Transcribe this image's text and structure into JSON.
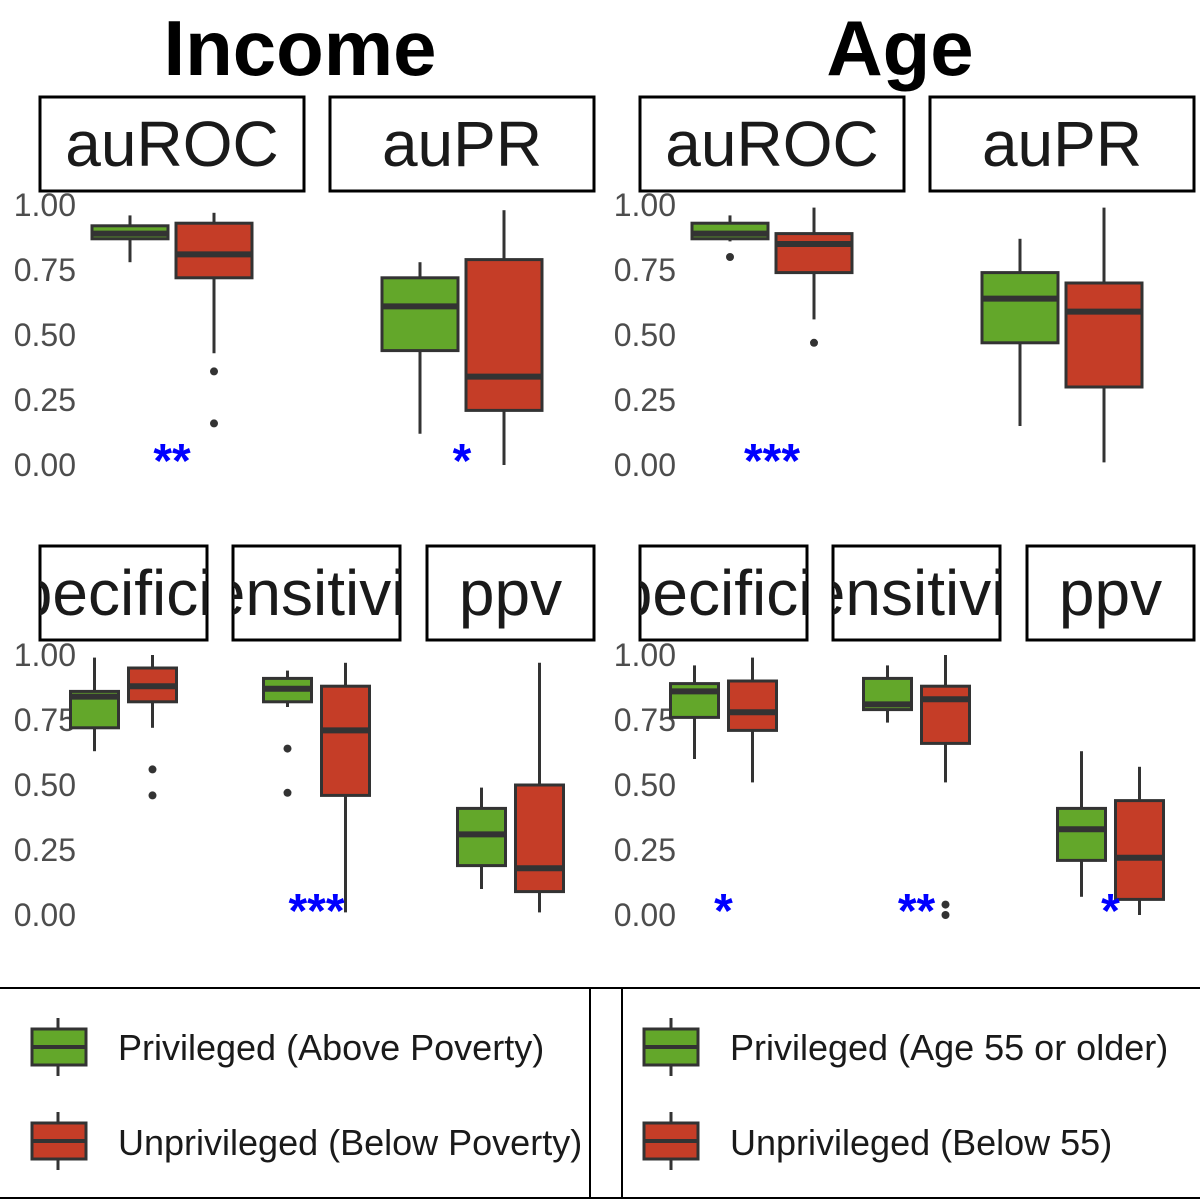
{
  "groups": [
    {
      "title": "Income"
    },
    {
      "title": "Age"
    }
  ],
  "legend": {
    "income": [
      {
        "label": "Privileged (Above Poverty)",
        "color": "#63a72a"
      },
      {
        "label": "Unprivileged (Below Poverty)",
        "color": "#c53d27"
      }
    ],
    "age": [
      {
        "label": "Privileged (Age 55 or older)",
        "color": "#63a72a"
      },
      {
        "label": "Unprivileged (Below 55)",
        "color": "#c53d27"
      }
    ]
  },
  "chart_data": [
    {
      "type": "boxplot",
      "group": "Income",
      "panels": [
        {
          "metric": "auROC",
          "ylim": [
            0,
            1
          ],
          "y_ticks": [
            "0.00",
            "0.25",
            "0.50",
            "0.75",
            "1.00"
          ],
          "significance": "**",
          "boxes": [
            {
              "series": "Privileged (Above Poverty)",
              "min": 0.78,
              "q1": 0.87,
              "median": 0.89,
              "q3": 0.92,
              "max": 0.96,
              "outliers": []
            },
            {
              "series": "Unprivileged (Below Poverty)",
              "min": 0.43,
              "q1": 0.72,
              "median": 0.81,
              "q3": 0.93,
              "max": 0.97,
              "outliers": [
                0.36,
                0.16
              ]
            }
          ]
        },
        {
          "metric": "auPR",
          "ylim": [
            0,
            1
          ],
          "y_ticks": [],
          "significance": "*",
          "boxes": [
            {
              "series": "Privileged (Above Poverty)",
              "min": 0.12,
              "q1": 0.44,
              "median": 0.61,
              "q3": 0.72,
              "max": 0.78,
              "outliers": []
            },
            {
              "series": "Unprivileged (Below Poverty)",
              "min": 0.0,
              "q1": 0.21,
              "median": 0.34,
              "q3": 0.79,
              "max": 0.98,
              "outliers": []
            }
          ]
        },
        {
          "metric": "specificity",
          "ylim": [
            0,
            1
          ],
          "y_ticks": [
            "0.00",
            "0.25",
            "0.50",
            "0.75",
            "1.00"
          ],
          "significance": "",
          "boxes": [
            {
              "series": "Privileged (Above Poverty)",
              "min": 0.63,
              "q1": 0.72,
              "median": 0.84,
              "q3": 0.86,
              "max": 0.99,
              "outliers": []
            },
            {
              "series": "Unprivileged (Below Poverty)",
              "min": 0.72,
              "q1": 0.82,
              "median": 0.88,
              "q3": 0.95,
              "max": 1.0,
              "outliers": [
                0.56,
                0.46
              ]
            }
          ]
        },
        {
          "metric": "sensitivity",
          "ylim": [
            0,
            1
          ],
          "y_ticks": [],
          "significance": "***",
          "boxes": [
            {
              "series": "Privileged (Above Poverty)",
              "min": 0.8,
              "q1": 0.82,
              "median": 0.87,
              "q3": 0.91,
              "max": 0.94,
              "outliers": [
                0.64,
                0.47
              ]
            },
            {
              "series": "Unprivileged (Below Poverty)",
              "min": 0.01,
              "q1": 0.46,
              "median": 0.71,
              "q3": 0.88,
              "max": 0.97,
              "outliers": []
            }
          ]
        },
        {
          "metric": "ppv",
          "ylim": [
            0,
            1
          ],
          "y_ticks": [],
          "significance": "",
          "boxes": [
            {
              "series": "Privileged (Above Poverty)",
              "min": 0.1,
              "q1": 0.19,
              "median": 0.31,
              "q3": 0.41,
              "max": 0.49,
              "outliers": []
            },
            {
              "series": "Unprivileged (Below Poverty)",
              "min": 0.01,
              "q1": 0.09,
              "median": 0.18,
              "q3": 0.5,
              "max": 0.97,
              "outliers": []
            }
          ]
        }
      ]
    },
    {
      "type": "boxplot",
      "group": "Age",
      "panels": [
        {
          "metric": "auROC",
          "ylim": [
            0,
            1
          ],
          "y_ticks": [
            "0.00",
            "0.25",
            "0.50",
            "0.75",
            "1.00"
          ],
          "significance": "***",
          "boxes": [
            {
              "series": "Privileged (Age 55 or older)",
              "min": 0.86,
              "q1": 0.87,
              "median": 0.89,
              "q3": 0.93,
              "max": 0.96,
              "outliers": [
                0.8
              ]
            },
            {
              "series": "Unprivileged (Below 55)",
              "min": 0.56,
              "q1": 0.74,
              "median": 0.85,
              "q3": 0.89,
              "max": 0.99,
              "outliers": [
                0.47
              ]
            }
          ]
        },
        {
          "metric": "auPR",
          "ylim": [
            0,
            1
          ],
          "y_ticks": [],
          "significance": "",
          "boxes": [
            {
              "series": "Privileged (Age 55 or older)",
              "min": 0.15,
              "q1": 0.47,
              "median": 0.64,
              "q3": 0.74,
              "max": 0.87,
              "outliers": []
            },
            {
              "series": "Unprivileged (Below 55)",
              "min": 0.01,
              "q1": 0.3,
              "median": 0.59,
              "q3": 0.7,
              "max": 0.99,
              "outliers": []
            }
          ]
        },
        {
          "metric": "specificity",
          "ylim": [
            0,
            1
          ],
          "y_ticks": [
            "0.00",
            "0.25",
            "0.50",
            "0.75",
            "1.00"
          ],
          "significance": "*",
          "boxes": [
            {
              "series": "Privileged (Age 55 or older)",
              "min": 0.6,
              "q1": 0.76,
              "median": 0.86,
              "q3": 0.89,
              "max": 0.96,
              "outliers": []
            },
            {
              "series": "Unprivileged (Below 55)",
              "min": 0.51,
              "q1": 0.71,
              "median": 0.78,
              "q3": 0.9,
              "max": 0.99,
              "outliers": []
            }
          ]
        },
        {
          "metric": "sensitivity",
          "ylim": [
            0,
            1
          ],
          "y_ticks": [],
          "significance": "**",
          "boxes": [
            {
              "series": "Privileged (Age 55 or older)",
              "min": 0.74,
              "q1": 0.79,
              "median": 0.81,
              "q3": 0.91,
              "max": 0.96,
              "outliers": []
            },
            {
              "series": "Unprivileged (Below 55)",
              "min": 0.51,
              "q1": 0.66,
              "median": 0.83,
              "q3": 0.88,
              "max": 1.0,
              "outliers": [
                0.04,
                0.0
              ]
            }
          ]
        },
        {
          "metric": "ppv",
          "ylim": [
            0,
            1
          ],
          "y_ticks": [],
          "significance": "*",
          "boxes": [
            {
              "series": "Privileged (Age 55 or older)",
              "min": 0.07,
              "q1": 0.21,
              "median": 0.33,
              "q3": 0.41,
              "max": 0.63,
              "outliers": []
            },
            {
              "series": "Unprivileged (Below 55)",
              "min": 0.0,
              "q1": 0.06,
              "median": 0.22,
              "q3": 0.44,
              "max": 0.57,
              "outliers": []
            }
          ]
        }
      ]
    }
  ]
}
